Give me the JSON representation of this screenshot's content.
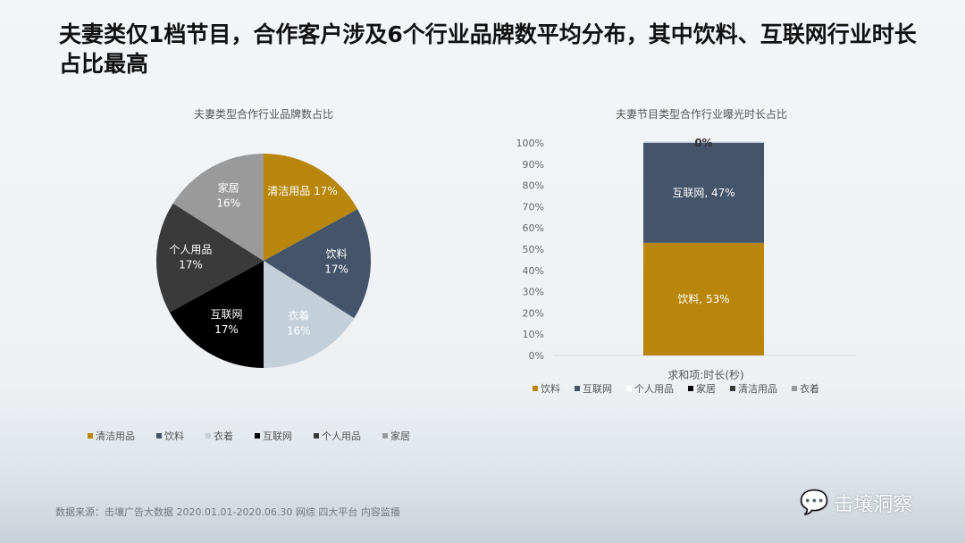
{
  "title": "夫妻类仅1档节目，合作客户涉及6个行业品牌数平均分布，其中饮料、互联网行业时长占比最高",
  "chart_data": [
    {
      "type": "pie",
      "title": "夫妻类型合作行业品牌数占比",
      "labels": [
        "清洁用品",
        "饮料",
        "衣着",
        "互联网",
        "个人用品",
        "家居"
      ],
      "values": [
        17,
        17,
        16,
        17,
        17,
        16
      ],
      "value_labels": [
        "17%",
        "17%",
        "16%",
        "17%",
        "17%",
        "16%"
      ],
      "colors": [
        "#b8860b",
        "#44546a",
        "#c3cfd9",
        "#000000",
        "#3a3a3a",
        "#9a9a9a"
      ],
      "legend": "bottom"
    },
    {
      "type": "bar",
      "stacked": true,
      "title": "夫妻节目类型合作行业曝光时长占比",
      "categories": [
        "求和项:时长(秒)"
      ],
      "series": [
        {
          "name": "饮料",
          "values": [
            53
          ],
          "color": "#b8860b",
          "label": "饮料, 53%"
        },
        {
          "name": "互联网",
          "values": [
            47
          ],
          "color": "#44546a",
          "label": "互联网, 47%"
        },
        {
          "name": "个人用品",
          "values": [
            0
          ],
          "color": "#ffffff",
          "label": "0%"
        },
        {
          "name": "家居",
          "values": [
            0
          ],
          "color": "#000000",
          "label": ""
        },
        {
          "name": "清洁用品",
          "values": [
            0
          ],
          "color": "#3a3a3a",
          "label": ""
        },
        {
          "name": "衣着",
          "values": [
            0
          ],
          "color": "#9a9a9a",
          "label": ""
        }
      ],
      "ylim": [
        0,
        100
      ],
      "yticks": [
        "0%",
        "10%",
        "20%",
        "30%",
        "40%",
        "50%",
        "60%",
        "70%",
        "80%",
        "90%",
        "100%"
      ],
      "legend": "bottom"
    }
  ],
  "source": "数据来源：击壤广告大数据 2020.01.01-2020.06.30 网综 四大平台 内容监播",
  "brand": "击壤洞察"
}
